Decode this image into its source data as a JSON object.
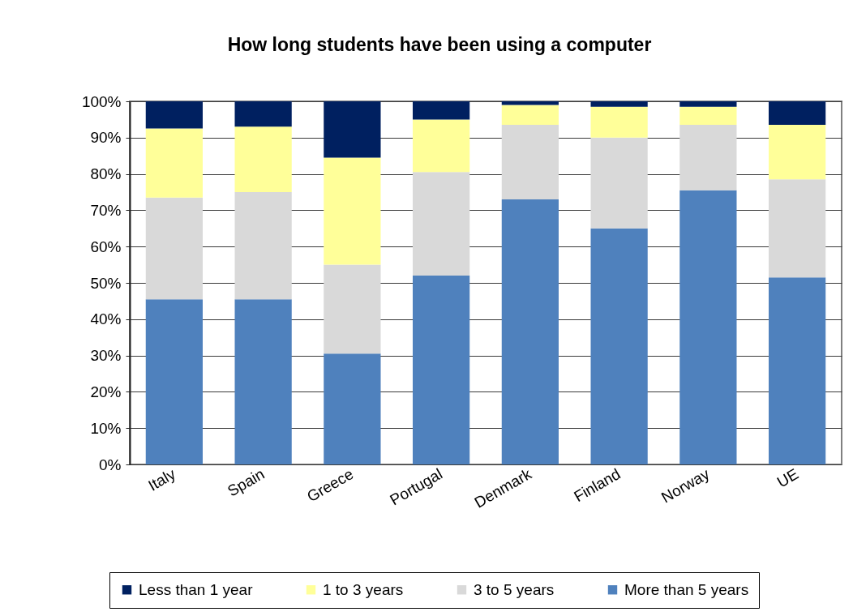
{
  "chart_data": {
    "type": "bar",
    "title": "How long students have been using a computer",
    "categories": [
      "Italy",
      "Spain",
      "Greece",
      "Portugal",
      "Denmark",
      "Finland",
      "Norway",
      "UE"
    ],
    "stacked": true,
    "series": [
      {
        "name": "More than 5 years",
        "color": "#4f81bd",
        "values": [
          45.5,
          45.5,
          30.5,
          52,
          73,
          65,
          75.5,
          51.5
        ]
      },
      {
        "name": "3 to 5 years",
        "color": "#d9d9d9",
        "values": [
          28,
          29.5,
          24.5,
          28.5,
          20.5,
          25,
          18,
          27
        ]
      },
      {
        "name": "1 to 3 years",
        "color": "#ffff99",
        "values": [
          19,
          18,
          29.5,
          14.5,
          5.5,
          8.5,
          5,
          15
        ]
      },
      {
        "name": "Less than 1 year",
        "color": "#002060",
        "values": [
          7.5,
          7,
          15.5,
          5,
          1,
          1.5,
          1.5,
          6.5
        ]
      }
    ],
    "ylim": [
      0,
      100
    ],
    "yticks": [
      {
        "value": 0,
        "label": "0%"
      },
      {
        "value": 10,
        "label": "10%"
      },
      {
        "value": 20,
        "label": "20%"
      },
      {
        "value": 30,
        "label": "30%"
      },
      {
        "value": 40,
        "label": "40%"
      },
      {
        "value": 50,
        "label": "50%"
      },
      {
        "value": 60,
        "label": "60%"
      },
      {
        "value": 70,
        "label": "70%"
      },
      {
        "value": 80,
        "label": "80%"
      },
      {
        "value": 90,
        "label": "90%"
      },
      {
        "value": 100,
        "label": "100%"
      }
    ],
    "grid": "y",
    "legend": "bottom"
  }
}
